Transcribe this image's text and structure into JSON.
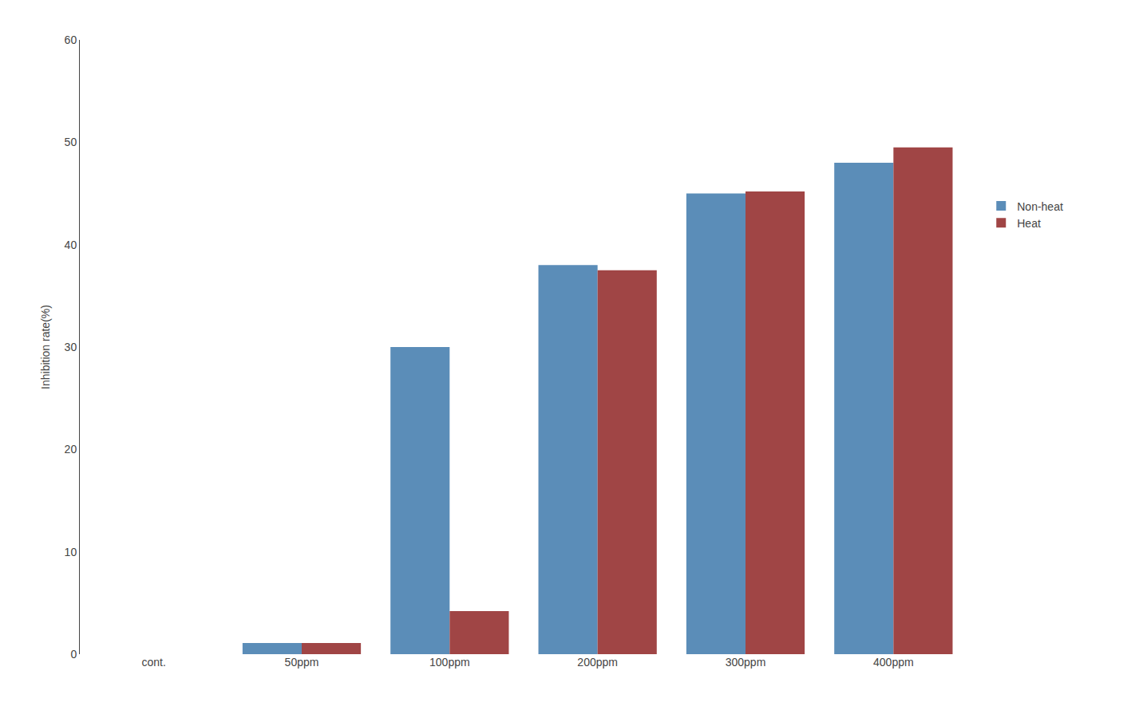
{
  "chart_data": {
    "type": "bar",
    "categories": [
      "cont.",
      "50ppm",
      "100ppm",
      "200ppm",
      "300ppm",
      "400ppm"
    ],
    "series": [
      {
        "name": "Non-heat",
        "color": "#5B8DB8",
        "values": [
          0,
          1.1,
          30.0,
          38.0,
          45.0,
          48.0
        ]
      },
      {
        "name": "Heat",
        "color": "#A04545",
        "values": [
          0,
          1.1,
          4.2,
          37.5,
          45.2,
          49.5
        ]
      }
    ],
    "ylabel": "Inhibition rate(%)",
    "ylim": [
      0,
      60
    ],
    "yticks": [
      0,
      10,
      20,
      30,
      40,
      50,
      60
    ],
    "grid": false,
    "legend": "right"
  }
}
